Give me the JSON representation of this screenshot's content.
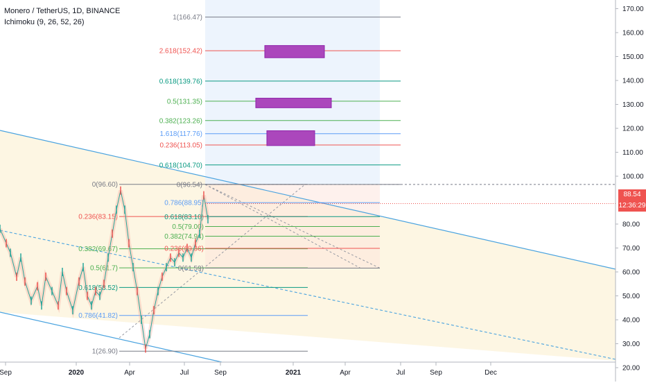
{
  "header": {
    "title": "Monero / TetherUS, 1D, BINANCE",
    "indicator": "Ichimoku (9, 26, 52, 26)"
  },
  "colors": {
    "fib_red": "#ef5350",
    "fib_teal": "#089981",
    "fib_blue": "#5b9cf6",
    "fib_green": "#4caf50",
    "fib_gray": "#787b86",
    "channel": "#4aa3df",
    "box_fill": "#ab47bc",
    "price_badge": "#ef5350"
  },
  "chart_data": {
    "type": "line",
    "symbol": "XMR/USDT",
    "timeframe": "1D",
    "y_axis": {
      "ticks": [
        "170.00",
        "160.00",
        "150.00",
        "140.00",
        "130.00",
        "120.00",
        "110.00",
        "100.00",
        "80.00",
        "70.00",
        "60.00",
        "50.00",
        "40.00",
        "30.00",
        "20.00"
      ],
      "ylim": [
        13,
        175
      ]
    },
    "x_axis": {
      "ticks": [
        "Sep",
        "2020",
        "Apr",
        "Jul",
        "Sep",
        "2021",
        "Apr",
        "Jul",
        "Sep",
        "Dec"
      ]
    },
    "last_price": "88.54",
    "countdown": "12:36:29",
    "fib_upper": [
      {
        "label": "1(166.47)",
        "value": 166.47
      },
      {
        "label": "2.618(152.42)",
        "value": 152.42
      },
      {
        "label": "0.618(139.76)",
        "value": 139.76
      },
      {
        "label": "0.5(131.35)",
        "value": 131.35
      },
      {
        "label": "0.382(123.26)",
        "value": 123.26
      },
      {
        "label": "1.618(117.76)",
        "value": 117.76
      },
      {
        "label": "0.236(113.05)",
        "value": 113.05
      },
      {
        "label": "0.618(104.70)",
        "value": 104.7
      },
      {
        "label": "0(96.54)",
        "value": 96.54
      }
    ],
    "fib_lower": [
      {
        "label": "0(96.60)",
        "value": 96.6
      },
      {
        "label": "0.236(83.15)",
        "value": 83.15
      },
      {
        "label": "0.382(69.67)",
        "value": 69.67
      },
      {
        "label": "0.5(61.7)",
        "value": 61.7
      },
      {
        "label": "0.618(53.52)",
        "value": 53.52
      },
      {
        "label": "0.786(41.82)",
        "value": 41.82
      },
      {
        "label": "1(26.90)",
        "value": 26.9
      }
    ],
    "fib_mid": [
      {
        "label": "0.786(88.95)",
        "value": 88.95
      },
      {
        "label": "0.618(83.10)",
        "value": 83.1
      },
      {
        "label": "0.5(79.00)",
        "value": 79.0
      },
      {
        "label": "0.382(74.94)",
        "value": 74.94
      },
      {
        "label": "0.236(69.86)",
        "value": 69.86
      },
      {
        "label": "0(61.59)",
        "value": 61.59
      }
    ],
    "target_boxes": [
      {
        "y0": 149.5,
        "y1": 154.6
      },
      {
        "y0": 128.6,
        "y1": 132.6
      },
      {
        "y0": 112.8,
        "y1": 119.0
      }
    ],
    "price_series": {
      "name": "",
      "points": [
        [
          0,
          78
        ],
        [
          0.03,
          72
        ],
        [
          0.05,
          68
        ],
        [
          0.08,
          58
        ],
        [
          0.1,
          66
        ],
        [
          0.12,
          56
        ],
        [
          0.15,
          48
        ],
        [
          0.18,
          54
        ],
        [
          0.2,
          46
        ],
        [
          0.22,
          58
        ],
        [
          0.25,
          52
        ],
        [
          0.28,
          46
        ],
        [
          0.3,
          60
        ],
        [
          0.32,
          52
        ],
        [
          0.35,
          44
        ],
        [
          0.38,
          56
        ],
        [
          0.4,
          62
        ],
        [
          0.42,
          50
        ],
        [
          0.44,
          46
        ],
        [
          0.46,
          52
        ],
        [
          0.48,
          50
        ],
        [
          0.5,
          55
        ],
        [
          0.52,
          66
        ],
        [
          0.54,
          76
        ],
        [
          0.56,
          86
        ],
        [
          0.58,
          94
        ],
        [
          0.6,
          86
        ],
        [
          0.62,
          72
        ],
        [
          0.64,
          62
        ],
        [
          0.66,
          52
        ],
        [
          0.68,
          40
        ],
        [
          0.7,
          28
        ],
        [
          0.72,
          34
        ],
        [
          0.74,
          44
        ],
        [
          0.76,
          52
        ],
        [
          0.78,
          58
        ],
        [
          0.8,
          62
        ],
        [
          0.82,
          66
        ],
        [
          0.84,
          64
        ],
        [
          0.86,
          68
        ],
        [
          0.88,
          66
        ],
        [
          0.9,
          70
        ],
        [
          0.92,
          66
        ],
        [
          0.94,
          72
        ],
        [
          0.96,
          76
        ],
        [
          0.98,
          92
        ],
        [
          1,
          82
        ]
      ]
    }
  }
}
